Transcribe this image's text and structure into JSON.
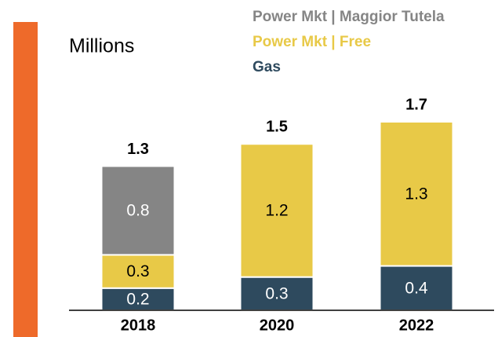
{
  "chart_data": {
    "type": "stacked_bar",
    "unit_label": "Millions",
    "categories": [
      "2018",
      "2020",
      "2022"
    ],
    "series": [
      {
        "name": "Gas",
        "color": "#2e4a5e",
        "label_color": "#ffffff",
        "values": [
          0.2,
          0.3,
          0.4
        ]
      },
      {
        "name": "Power Mkt | Free",
        "color": "#e8c947",
        "label_color": "#000000",
        "values": [
          0.3,
          1.2,
          1.3
        ]
      },
      {
        "name": "Power Mkt | Maggior Tutela",
        "color": "#858585",
        "label_color": "#ffffff",
        "values": [
          0.8,
          null,
          null
        ]
      }
    ],
    "totals": [
      1.3,
      1.5,
      1.7
    ]
  }
}
